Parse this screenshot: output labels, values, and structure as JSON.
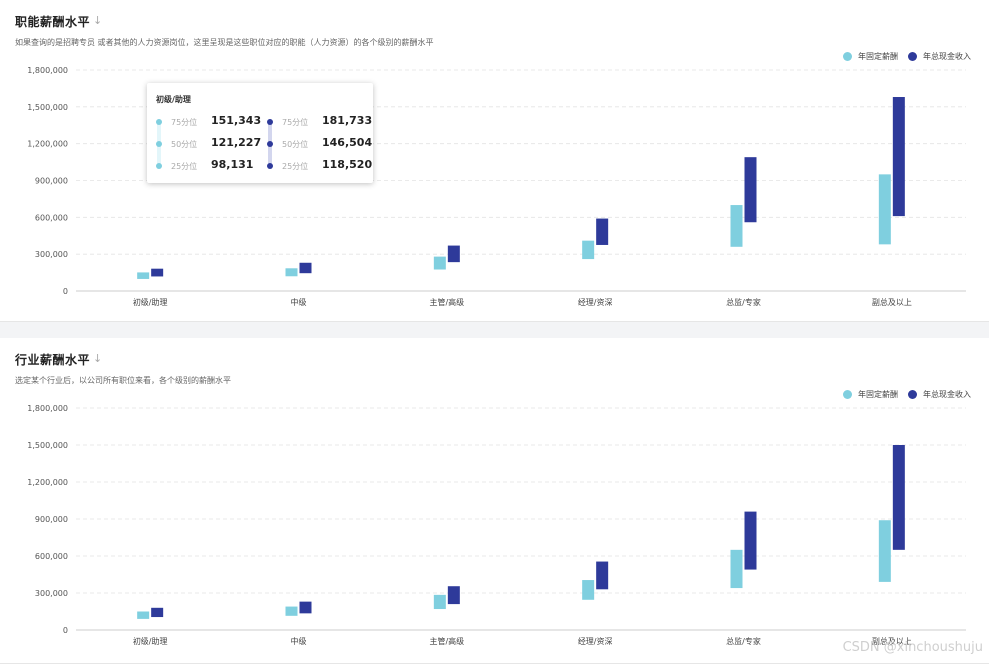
{
  "panels": [
    {
      "title": "职能薪酬水平",
      "subtitle": "如果查询的是招聘专员 或者其他的人力资源岗位，这里呈现是这些职位对应的职能（人力资源）的各个级别的薪酬水平"
    },
    {
      "title": "行业薪酬水平",
      "subtitle": "选定某个行业后，以公司所有职位来看，各个级别的薪酬水平"
    }
  ],
  "icons": {
    "title_icon": "download-arrow-icon"
  },
  "colors": {
    "fixed": "#7fcfdf",
    "total": "#2e3a9a",
    "tooltip_fixed_track": "#e3f6fa",
    "tooltip_total_track": "#d3d6ee"
  },
  "legend": {
    "fixed": "年固定薪酬",
    "total": "年总现金收入"
  },
  "tooltip": {
    "title": "初级/助理",
    "left": [
      {
        "label": "75分位",
        "value": "151,343"
      },
      {
        "label": "50分位",
        "value": "121,227"
      },
      {
        "label": "25分位",
        "value": "98,131"
      }
    ],
    "right": [
      {
        "label": "75分位",
        "value": "181,733"
      },
      {
        "label": "50分位",
        "value": "146,504"
      },
      {
        "label": "25分位",
        "value": "118,520"
      }
    ]
  },
  "watermark": "CSDN @xinchoushuju",
  "chart_data": [
    {
      "type": "bar",
      "categories": [
        "初级/助理",
        "中级",
        "主管/高级",
        "经理/资深",
        "总监/专家",
        "副总及以上"
      ],
      "ylim": [
        0,
        1800000
      ],
      "yticks": [
        "0",
        "300,000",
        "600,000",
        "900,000",
        "1,200,000",
        "1,500,000",
        "1,800,000"
      ],
      "grid": true,
      "legend_position": "top-right",
      "series": [
        {
          "name": "年固定薪酬",
          "ranges": [
            [
              98131,
              151343
            ],
            [
              120000,
              185000
            ],
            [
              175000,
              280000
            ],
            [
              260000,
              410000
            ],
            [
              360000,
              700000
            ],
            [
              380000,
              950000
            ]
          ]
        },
        {
          "name": "年总现金收入",
          "ranges": [
            [
              118520,
              181733
            ],
            [
              145000,
              230000
            ],
            [
              235000,
              370000
            ],
            [
              375000,
              590000
            ],
            [
              560000,
              1090000
            ],
            [
              610000,
              1580000
            ]
          ]
        }
      ]
    },
    {
      "type": "bar",
      "categories": [
        "初级/助理",
        "中级",
        "主管/高级",
        "经理/资深",
        "总监/专家",
        "副总及以上"
      ],
      "ylim": [
        0,
        1800000
      ],
      "yticks": [
        "0",
        "300,000",
        "600,000",
        "900,000",
        "1,200,000",
        "1,500,000",
        "1,800,000"
      ],
      "grid": true,
      "legend_position": "top-right",
      "series": [
        {
          "name": "年固定薪酬",
          "ranges": [
            [
              90000,
              150000
            ],
            [
              115000,
              190000
            ],
            [
              170000,
              285000
            ],
            [
              245000,
              405000
            ],
            [
              340000,
              650000
            ],
            [
              390000,
              890000
            ]
          ]
        },
        {
          "name": "年总现金收入",
          "ranges": [
            [
              105000,
              180000
            ],
            [
              135000,
              230000
            ],
            [
              210000,
              355000
            ],
            [
              330000,
              555000
            ],
            [
              490000,
              960000
            ],
            [
              650000,
              1500000
            ]
          ]
        }
      ]
    }
  ]
}
